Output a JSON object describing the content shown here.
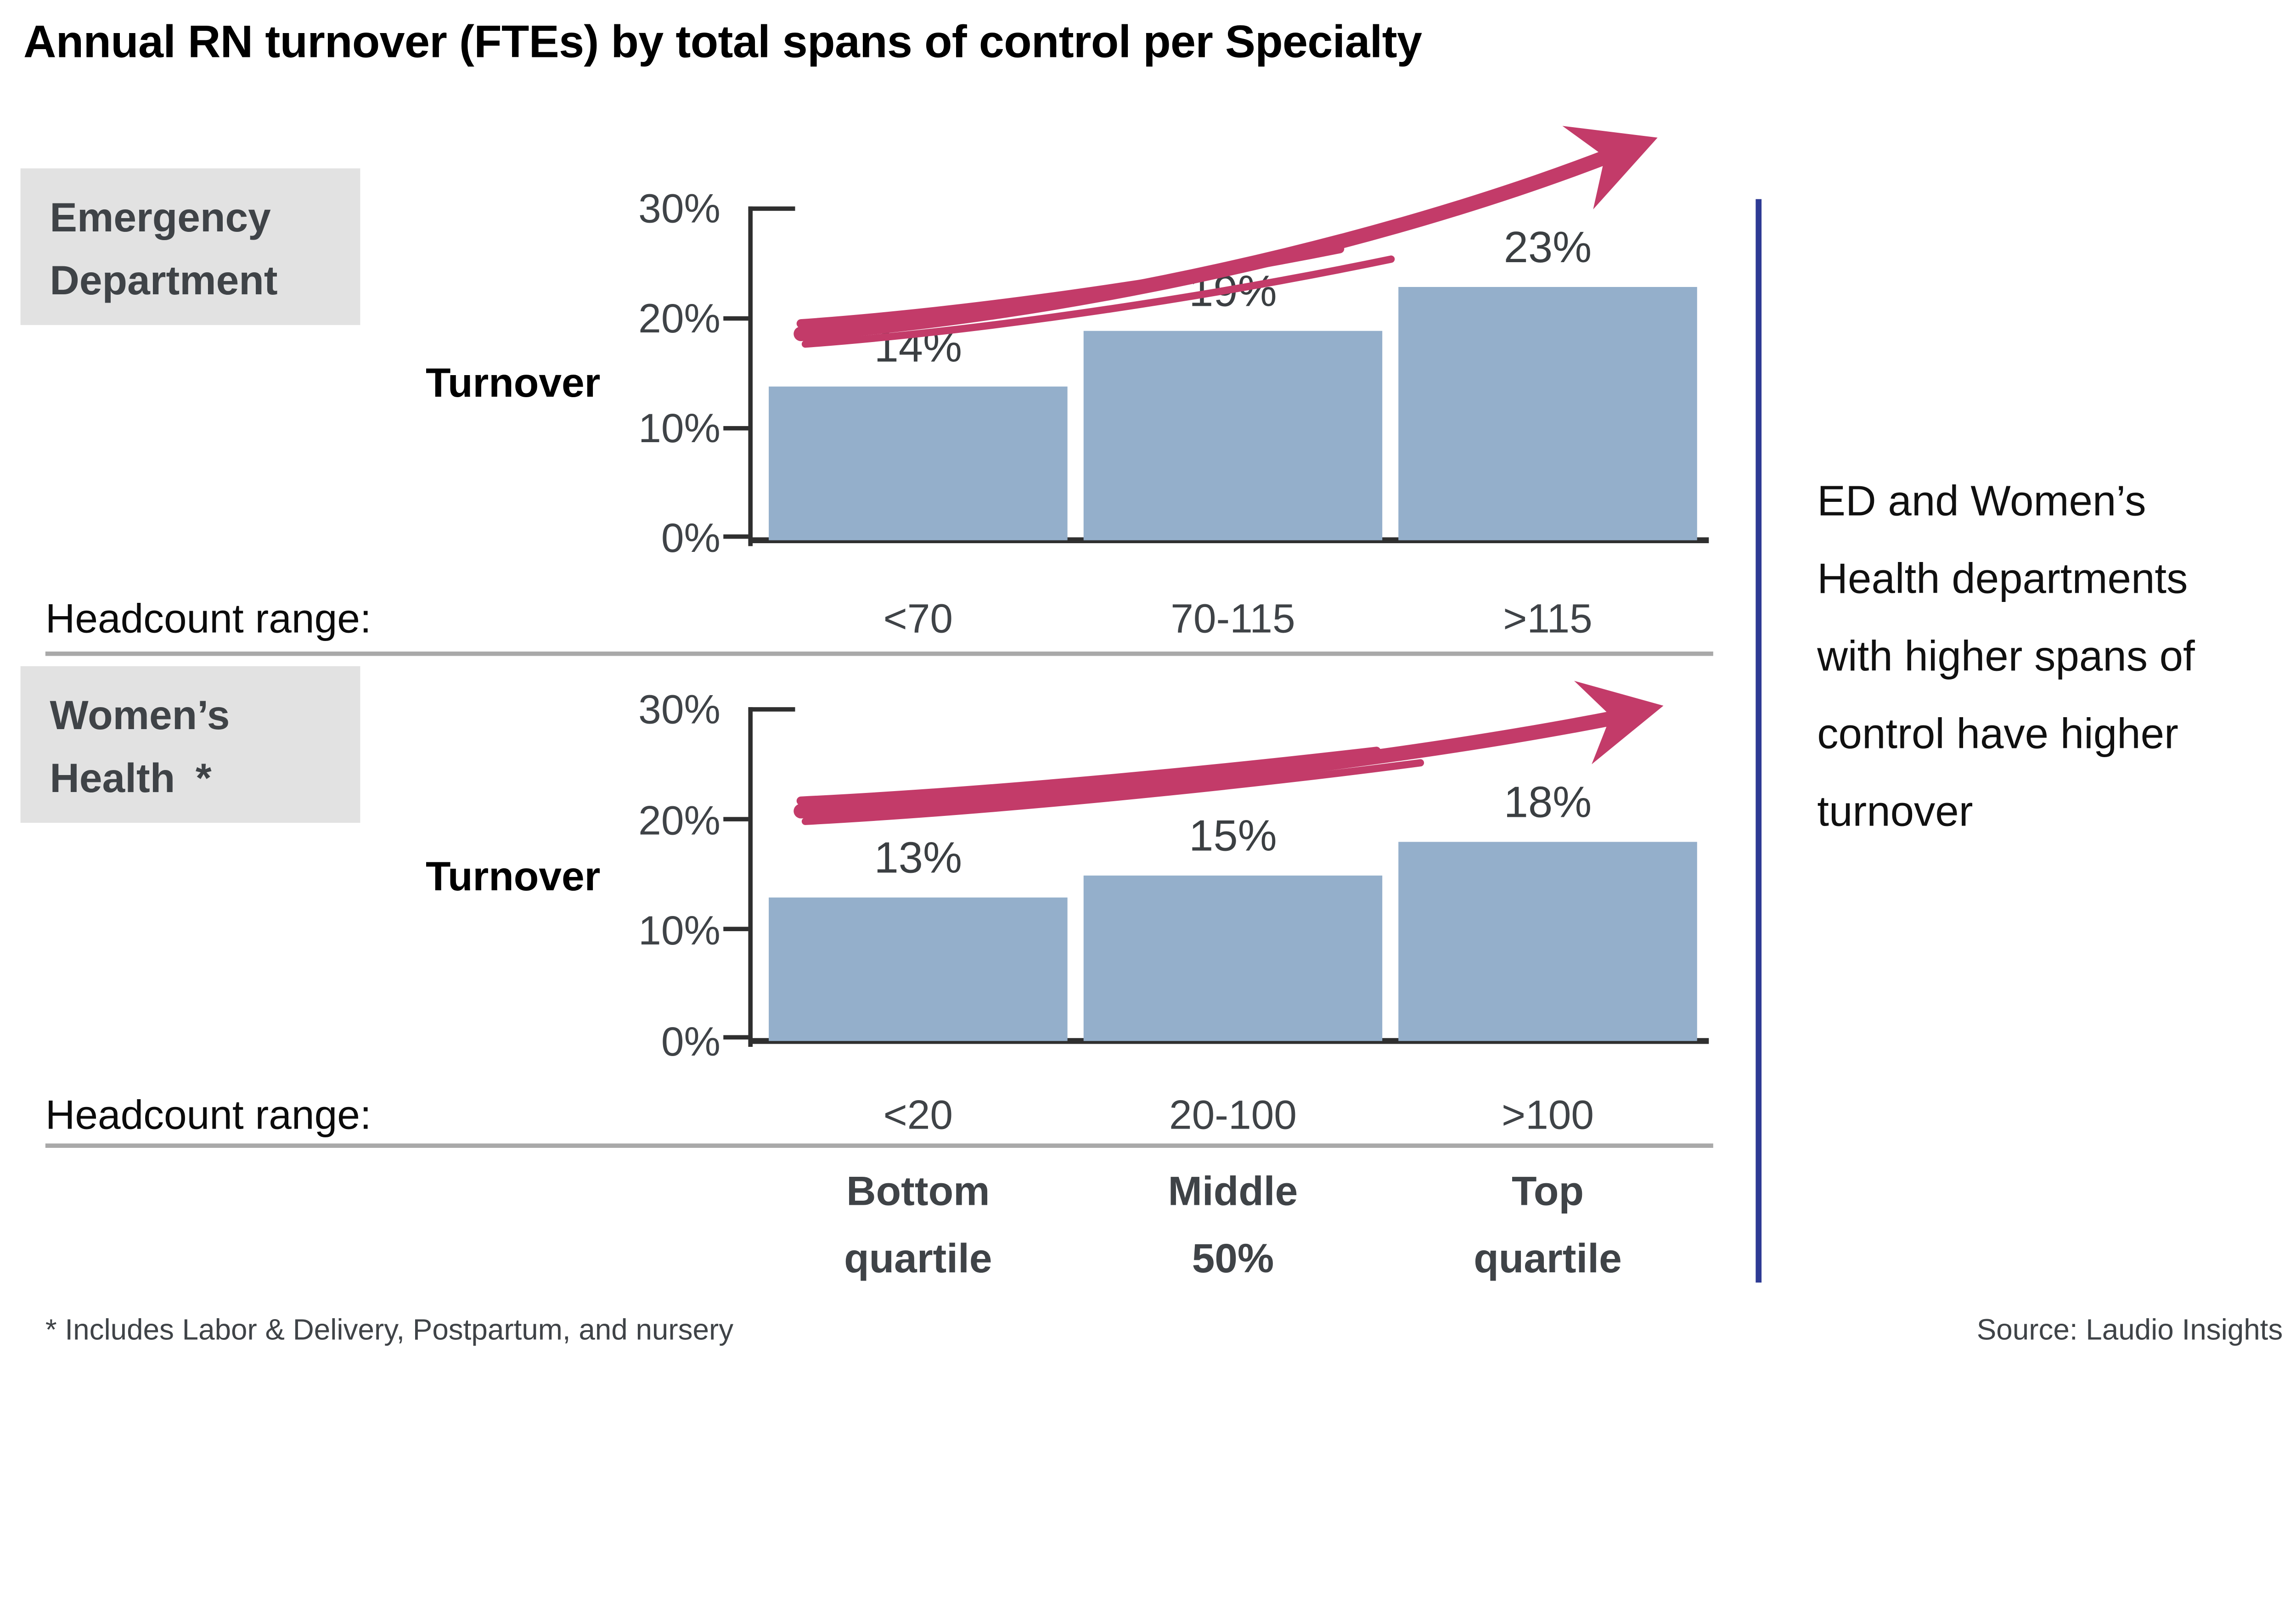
{
  "title": "Annual RN turnover (FTEs) by total spans of control per Specialty",
  "chart_data": [
    {
      "type": "bar",
      "section_label_lines": [
        "Emergency",
        "Department"
      ],
      "ylabel": "Turnover",
      "xlabel": "Headcount range:",
      "categories": [
        "<70",
        "70-115",
        ">115"
      ],
      "values": [
        14,
        19,
        23
      ],
      "value_labels": [
        "14%",
        "19%",
        "23%"
      ],
      "yticks": [
        "30%",
        "20%",
        "10%",
        "0%"
      ],
      "ylim": [
        0,
        30
      ],
      "grid": false,
      "legend": "none",
      "annotation": "hand-drawn upward trend arrow"
    },
    {
      "type": "bar",
      "section_label_lines": [
        "Women’s",
        "Health *"
      ],
      "ylabel": "Turnover",
      "xlabel": "Headcount range:",
      "categories": [
        "<20",
        "20-100",
        ">100"
      ],
      "values": [
        13,
        15,
        18
      ],
      "value_labels": [
        "13%",
        "15%",
        "18%"
      ],
      "yticks": [
        "30%",
        "20%",
        "10%",
        "0%"
      ],
      "ylim": [
        0,
        30
      ],
      "grid": false,
      "legend": "none",
      "annotation": "hand-drawn upward trend arrow"
    }
  ],
  "quartiles": [
    {
      "line1": "Bottom",
      "line2": "quartile"
    },
    {
      "line1": "Middle",
      "line2": "50%"
    },
    {
      "line1": "Top",
      "line2": "quartile"
    }
  ],
  "note": {
    "lines": [
      "ED and Women’s",
      "Health departments",
      "with higher spans of",
      "control have higher",
      "turnover"
    ]
  },
  "footnote": "* Includes Labor & Delivery, Postpartum, and nursery",
  "source": "Source: Laudio Insights",
  "colors": {
    "bar": "#94AFCB",
    "arrow": "#C33B69",
    "section_box_bg": "#E2E2E2",
    "section_box_text": "#3F4347",
    "axis": "#2F2F2F",
    "divider": "#A9A9A9",
    "note_line": "#2E3B94"
  }
}
